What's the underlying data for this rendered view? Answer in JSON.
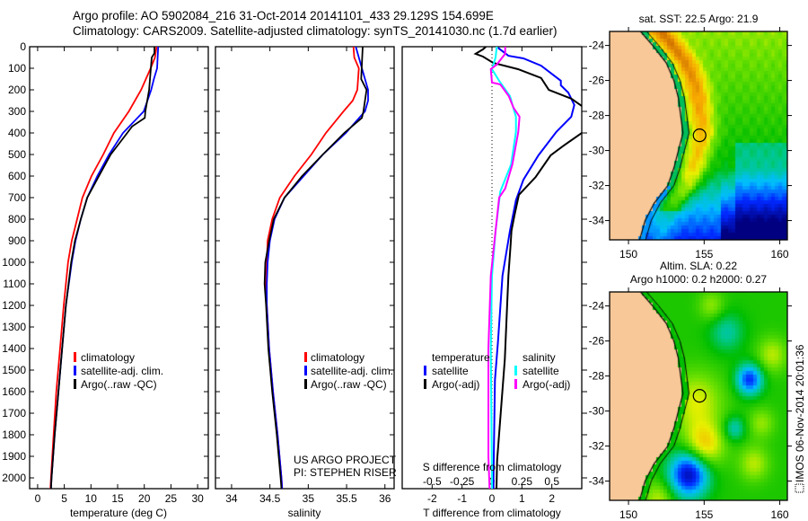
{
  "title": {
    "line1": "Argo profile: AO 5902084_216 31-Oct-2014 20141101_433 29.129S 154.699E",
    "line2": "Climatology: CARS2009. Satellite-adjusted climatology: synTS_20141030.nc (1.7d earlier)"
  },
  "colors": {
    "climatology": "#ff0000",
    "satellite": "#0000ff",
    "argo": "#000000",
    "sal_satellite": "#00ffff",
    "sal_argo": "#ff00ff",
    "land": "#f8c898"
  },
  "project": {
    "line1": "US ARGO PROJECT",
    "line2": "PI: STEPHEN RISER"
  },
  "timestamp": "IMOS 06-Nov-2014 20:01:36",
  "chart_data": [
    {
      "type": "line",
      "id": "temperature",
      "xlabel": "temperature (deg C)",
      "ylabel": "",
      "xlim": [
        -1.5,
        32
      ],
      "ylim": [
        0,
        2050
      ],
      "xticks": [
        0,
        5,
        10,
        15,
        20,
        25,
        30
      ],
      "xtick_labels": [
        "0",
        "5",
        "10",
        "15",
        "20",
        "25",
        "30"
      ],
      "yticks": [
        0,
        100,
        200,
        300,
        400,
        500,
        600,
        700,
        800,
        900,
        1000,
        1100,
        1200,
        1300,
        1400,
        1500,
        1600,
        1700,
        1800,
        1900,
        2000
      ],
      "ytick_labels": [
        "0",
        "100",
        "200",
        "300",
        "400",
        "500",
        "600",
        "700",
        "800",
        "900",
        "1000",
        "1100",
        "1200",
        "1300",
        "1400",
        "1500",
        "1600",
        "1700",
        "1800",
        "1900",
        "2000"
      ],
      "legend": [
        "climatology",
        "satellite-adj. clim.",
        "Argo(..raw -QC)"
      ],
      "series": [
        {
          "name": "climatology",
          "color": "#ff0000",
          "depth": [
            0,
            50,
            100,
            200,
            300,
            400,
            500,
            600,
            700,
            800,
            900,
            1000,
            1200,
            1400,
            1600,
            1800,
            2000,
            2050
          ],
          "values": [
            22.3,
            22,
            21.2,
            19.4,
            17.1,
            14.3,
            12.3,
            10.1,
            8.4,
            7.4,
            6.4,
            5.7,
            4.9,
            4.2,
            3.5,
            3.0,
            2.5,
            2.4
          ]
        },
        {
          "name": "satellite-adj. clim.",
          "color": "#0000ff",
          "depth": [
            0,
            100,
            150,
            200,
            300,
            400,
            500,
            600,
            700,
            800,
            900,
            1000,
            1200,
            1400,
            1600,
            1800,
            2000,
            2050
          ],
          "values": [
            22.6,
            22.4,
            21.8,
            21.3,
            19.9,
            16.0,
            13.4,
            11.2,
            9.3,
            8.1,
            7.1,
            6.4,
            5.3,
            4.6,
            3.9,
            3.2,
            2.6,
            2.5
          ]
        },
        {
          "name": "Argo(..raw -QC)",
          "color": "#000000",
          "depth": [
            0,
            30,
            50,
            200,
            300,
            330,
            370,
            400,
            500,
            600,
            700,
            800,
            900,
            1000,
            1200,
            1400,
            1600,
            1800,
            2000,
            2050
          ],
          "values": [
            21.9,
            21.9,
            21.4,
            20.9,
            20.2,
            20.1,
            17.7,
            16.8,
            13.7,
            11.5,
            9.3,
            8.1,
            7.0,
            6.3,
            5.3,
            4.6,
            3.9,
            3.2,
            2.6,
            2.5
          ]
        }
      ]
    },
    {
      "type": "line",
      "id": "salinity",
      "xlabel": "salinity",
      "ylabel": "",
      "xlim": [
        33.79,
        36.12
      ],
      "ylim": [
        0,
        2050
      ],
      "xticks": [
        34,
        34.5,
        35,
        35.5,
        36
      ],
      "xtick_labels": [
        "34",
        "34.5",
        "35",
        "35.5",
        "36"
      ],
      "legend": [
        "climatology",
        "satellite-adj. clim.",
        "Argo(..raw -QC)"
      ],
      "series": [
        {
          "name": "climatology",
          "color": "#ff0000",
          "depth": [
            0,
            50,
            100,
            200,
            250,
            300,
            400,
            500,
            600,
            700,
            800,
            900,
            1000,
            1100,
            1200,
            1400,
            1600,
            1800,
            2000,
            2050
          ],
          "values": [
            35.59,
            35.6,
            35.66,
            35.64,
            35.58,
            35.46,
            35.23,
            35.04,
            34.82,
            34.63,
            34.53,
            34.47,
            34.46,
            34.45,
            34.46,
            34.49,
            34.54,
            34.6,
            34.65,
            34.66
          ]
        },
        {
          "name": "satellite-adj. clim.",
          "color": "#0000ff",
          "depth": [
            0,
            100,
            200,
            250,
            300,
            400,
            500,
            600,
            700,
            800,
            900,
            1000,
            1100,
            1200,
            1400,
            1600,
            1800,
            2000,
            2050
          ],
          "values": [
            35.62,
            35.7,
            35.78,
            35.78,
            35.74,
            35.49,
            35.19,
            34.94,
            34.69,
            34.56,
            34.5,
            34.47,
            34.46,
            34.46,
            34.49,
            34.54,
            34.6,
            34.65,
            34.66
          ]
        },
        {
          "name": "Argo(..raw -QC)",
          "color": "#000000",
          "depth": [
            0,
            150,
            200,
            300,
            330,
            400,
            500,
            600,
            700,
            800,
            900,
            1000,
            1100,
            1200,
            1400,
            1600,
            1800,
            2000,
            2050
          ],
          "values": [
            35.71,
            35.69,
            35.76,
            35.72,
            35.7,
            35.47,
            35.19,
            34.92,
            34.69,
            34.55,
            34.49,
            34.44,
            34.43,
            34.45,
            34.48,
            34.53,
            34.59,
            34.64,
            34.65
          ]
        }
      ]
    },
    {
      "type": "line",
      "id": "difference",
      "xlabel": "T difference from climatology",
      "x2label": "S difference from climatology",
      "xlim": [
        -3,
        3
      ],
      "x2lim": [
        -0.75,
        0.75
      ],
      "ylim": [
        0,
        2050
      ],
      "xticks": [
        -2,
        -1,
        0,
        1,
        2
      ],
      "xtick_labels": [
        "-2",
        "-1",
        "0",
        "1",
        "2"
      ],
      "x2ticks": [
        -0.5,
        -0.25,
        0,
        0.25,
        0.5
      ],
      "x2tick_labels": [
        "-0.5",
        "-0.25",
        "0",
        "0.25",
        "0.5"
      ],
      "legend": {
        "temperature_title": "temperature",
        "salinity_title": "salinity",
        "temperature": [
          "satellite",
          "Argo(-adj)"
        ],
        "salinity": [
          "satellite",
          "Argo(-adj)"
        ]
      },
      "series": [
        {
          "name": "T satellite",
          "axis": "T",
          "color": "#0000ff",
          "depth": [
            5,
            42,
            54,
            88,
            158,
            179,
            213,
            270,
            325,
            395,
            504,
            617,
            712,
            854,
            1062,
            1367,
            1546,
            1992,
            2050
          ],
          "values": [
            0.2,
            0.55,
            1.05,
            1.64,
            2.3,
            2.3,
            2.55,
            2.75,
            2.65,
            2.15,
            1.55,
            1.05,
            0.8,
            0.6,
            0.35,
            0.2,
            0.1,
            0.05,
            0.05
          ]
        },
        {
          "name": "T Argo(-adj)",
          "axis": "T",
          "color": "#000000",
          "depth": [
            0,
            12,
            33,
            46,
            75,
            104,
            145,
            200,
            241,
            275,
            290,
            385,
            400,
            462,
            504,
            604,
            687,
            783,
            854,
            921,
            1062,
            1450,
            1920,
            2050
          ],
          "values": [
            -0.2,
            -0.3,
            -0.55,
            -0.3,
            0.04,
            0.87,
            1.64,
            1.9,
            2.65,
            3.0,
            3.3,
            3.3,
            3.0,
            2.36,
            1.96,
            1.46,
            0.9,
            0.75,
            0.65,
            0.62,
            0.55,
            0.43,
            0.17,
            0.15
          ]
        },
        {
          "name": "S satellite",
          "axis": "S",
          "color": "#00ffff",
          "depth": [
            0,
            50,
            104,
            158,
            229,
            325,
            395,
            546,
            671,
            854,
            1062,
            1400,
            2000,
            2050
          ],
          "values": [
            0.04,
            0.03,
            0.0,
            0.06,
            0.15,
            0.2,
            0.2,
            0.16,
            0.07,
            0.03,
            0.0,
            -0.01,
            0.0,
            0.0
          ]
        },
        {
          "name": "S Argo(-adj)",
          "axis": "S",
          "color": "#ff00ff",
          "depth": [
            0,
            33,
            83,
            104,
            166,
            175,
            229,
            283,
            325,
            395,
            546,
            658,
            700,
            854,
            1062,
            1400,
            1900,
            2050
          ],
          "values": [
            0.11,
            0.11,
            0.04,
            -0.01,
            0.0,
            0.07,
            0.14,
            0.18,
            0.23,
            0.22,
            0.17,
            0.11,
            0.06,
            0.03,
            -0.01,
            -0.03,
            -0.03,
            -0.02
          ]
        }
      ]
    }
  ],
  "maps": [
    {
      "id": "sst",
      "title_lines": [
        "sat. SST: 22.5 Argo: 21.9"
      ],
      "lon_ticks": [
        150,
        155,
        160
      ],
      "lat_ticks": [
        -24,
        -26,
        -28,
        -30,
        -32,
        -34
      ],
      "lat_tick_labels": [
        "-24",
        "-26",
        "-28",
        "-30",
        "-32",
        "-34"
      ],
      "lon_tick_labels": [
        "150",
        "155",
        "160"
      ],
      "lonlim": [
        148.75,
        160.5
      ],
      "latlim": [
        -35.1,
        -23.2
      ],
      "float": [
        154.699,
        -29.129
      ]
    },
    {
      "id": "sla",
      "title_lines": [
        "Altim. SLA: 0.22",
        "Argo h1000: 0.2 h2000: 0.27"
      ],
      "lon_ticks": [
        150,
        155,
        160
      ],
      "lat_ticks": [
        -24,
        -26,
        -28,
        -30,
        -32,
        -34
      ],
      "lat_tick_labels": [
        "-24",
        "-26",
        "-28",
        "-30",
        "-32",
        "-34"
      ],
      "lon_tick_labels": [
        "150",
        "155",
        "160"
      ],
      "lonlim": [
        148.75,
        160.5
      ],
      "latlim": [
        -35.1,
        -23.2
      ],
      "float": [
        154.699,
        -29.129
      ]
    }
  ]
}
